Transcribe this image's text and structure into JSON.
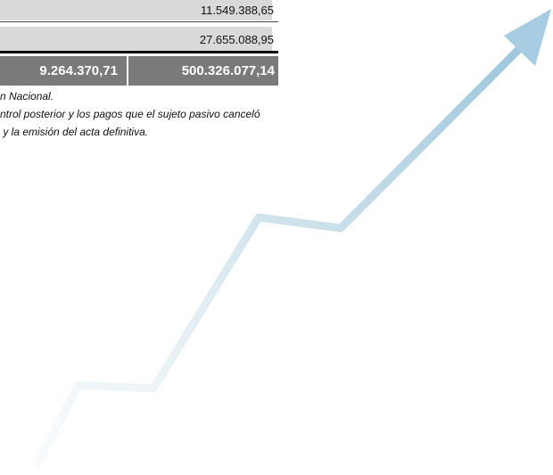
{
  "table": {
    "rows": [
      [
        "11.549.388,65"
      ],
      [
        "27.655.088,95"
      ]
    ],
    "total": [
      "9.264.370,71",
      "500.326.077,14"
    ]
  },
  "notes": [
    "n Nacional.",
    "ntrol posterior y los pagos que el sujeto pasivo canceló",
    " y la emisión del acta definitiva."
  ]
}
